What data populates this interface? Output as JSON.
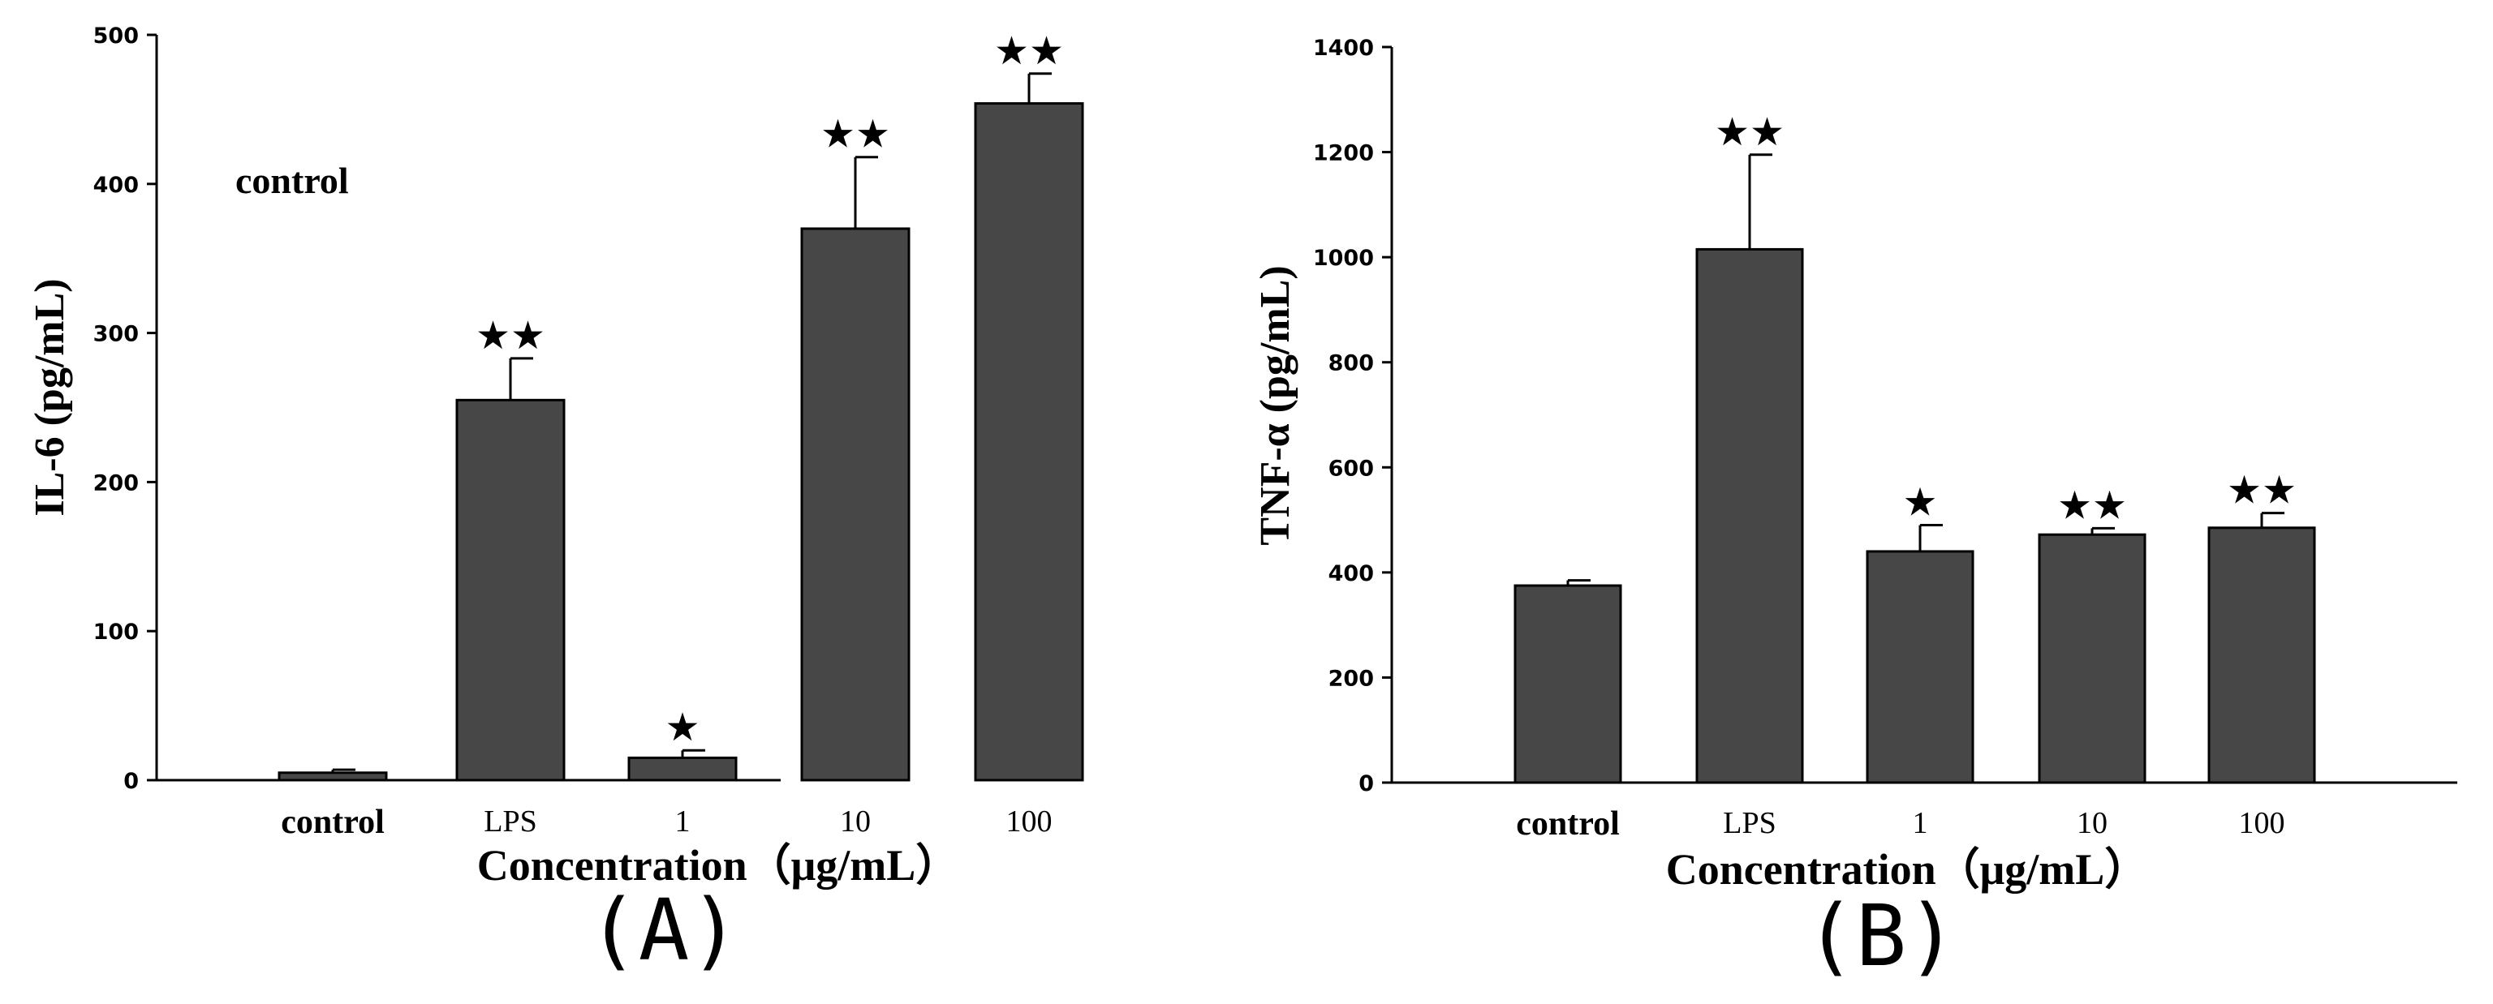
{
  "chart_data": [
    {
      "panel": "(A)",
      "type": "bar",
      "title": "",
      "ylabel": "IL-6 (pg/mL)",
      "xlabel": "Concentration（μg/mL）",
      "ylim": [
        0,
        500
      ],
      "yticks": [
        "0",
        "100",
        "200",
        "300",
        "400",
        "500"
      ],
      "categories": [
        "control",
        "LPS",
        "1",
        "10",
        "100"
      ],
      "values": [
        5,
        255,
        15,
        370,
        454
      ],
      "errors": [
        2,
        28,
        5,
        48,
        20
      ],
      "significance": [
        "",
        "★★",
        "★",
        "★★",
        "★★"
      ],
      "annotation": "control",
      "bar_color": "#474747"
    },
    {
      "panel": "(B)",
      "type": "bar",
      "title": "",
      "ylabel": "TNF-α (pg/mL)",
      "xlabel": "Concentration（μg/mL）",
      "ylim": [
        0,
        1400
      ],
      "yticks": [
        "0",
        "200",
        "400",
        "600",
        "800",
        "1000",
        "1200",
        "1400"
      ],
      "categories": [
        "control",
        "LPS",
        "1",
        "10",
        "100"
      ],
      "values": [
        375,
        1015,
        440,
        472,
        485
      ],
      "errors": [
        10,
        180,
        50,
        12,
        28
      ],
      "significance": [
        "",
        "★★",
        "★",
        "★★",
        "★★"
      ],
      "bar_color": "#474747"
    }
  ]
}
